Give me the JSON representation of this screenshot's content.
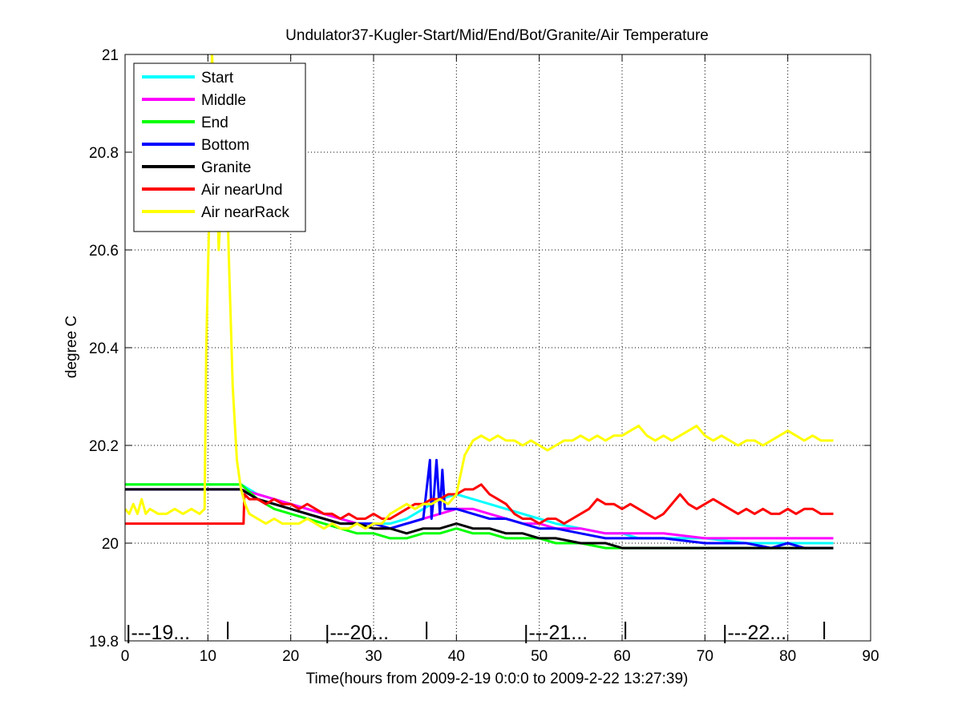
{
  "chart_data": {
    "type": "line",
    "title": "Undulator37-Kugler-Start/Mid/End/Bot/Granite/Air Temperature",
    "xlabel": "Time(hours from 2009-2-19 0:0:0 to 2009-2-22 13:27:39)",
    "ylabel": "degree C",
    "xlim": [
      0,
      90
    ],
    "ylim": [
      19.8,
      21
    ],
    "xticks": [
      0,
      10,
      20,
      30,
      40,
      50,
      60,
      70,
      80,
      90
    ],
    "yticks": [
      19.8,
      20,
      20.2,
      20.4,
      20.6,
      20.8,
      21
    ],
    "xtick_labels": [
      "0",
      "10",
      "20",
      "30",
      "40",
      "50",
      "60",
      "70",
      "80",
      "90"
    ],
    "ytick_labels": [
      "19.8",
      "20",
      "20.2",
      "20.4",
      "20.6",
      "20.8",
      "21"
    ],
    "grid": true,
    "legend_position": "top-left",
    "day_markers": [
      {
        "label": "|---19...",
        "x": 0
      },
      {
        "label": "|---20...",
        "x": 24
      },
      {
        "label": "|---21...",
        "x": 48
      },
      {
        "label": "|---22...",
        "x": 72
      }
    ],
    "day_end_ticks": [
      12.4,
      36.4,
      60.4,
      84.4
    ],
    "series": [
      {
        "name": "Start",
        "color": "#00ffff",
        "x": [
          0,
          14,
          15,
          16,
          18,
          20,
          22,
          24,
          26,
          28,
          30,
          32,
          34,
          36,
          38,
          40,
          42,
          44,
          46,
          48,
          50,
          52,
          55,
          58,
          60,
          62,
          65,
          70,
          75,
          80,
          85.5
        ],
        "y": [
          20.12,
          20.12,
          20.11,
          20.1,
          20.09,
          20.08,
          20.07,
          20.06,
          20.05,
          20.04,
          20.04,
          20.04,
          20.05,
          20.07,
          20.09,
          20.1,
          20.09,
          20.08,
          20.07,
          20.06,
          20.05,
          20.04,
          20.03,
          20.02,
          20.02,
          20.01,
          20.01,
          20.01,
          20.0,
          20.0,
          20.0
        ]
      },
      {
        "name": "Middle",
        "color": "#ff00ff",
        "x": [
          0,
          14,
          16,
          18,
          20,
          22,
          24,
          26,
          28,
          30,
          32,
          34,
          36,
          38,
          40,
          42,
          44,
          46,
          48,
          50,
          52,
          55,
          58,
          60,
          65,
          70,
          75,
          80,
          85.5
        ],
        "y": [
          20.11,
          20.11,
          20.1,
          20.09,
          20.08,
          20.07,
          20.06,
          20.05,
          20.04,
          20.03,
          20.03,
          20.04,
          20.05,
          20.06,
          20.07,
          20.07,
          20.06,
          20.05,
          20.04,
          20.04,
          20.03,
          20.03,
          20.02,
          20.02,
          20.02,
          20.01,
          20.01,
          20.01,
          20.01
        ]
      },
      {
        "name": "End",
        "color": "#00ff00",
        "x": [
          0,
          14,
          16,
          18,
          20,
          22,
          24,
          26,
          28,
          30,
          32,
          34,
          36,
          38,
          40,
          42,
          44,
          46,
          48,
          50,
          52,
          55,
          58,
          60,
          65,
          70,
          75,
          80,
          85.5
        ],
        "y": [
          20.12,
          20.12,
          20.09,
          20.07,
          20.06,
          20.05,
          20.04,
          20.03,
          20.02,
          20.02,
          20.01,
          20.01,
          20.02,
          20.02,
          20.03,
          20.02,
          20.02,
          20.01,
          20.01,
          20.01,
          20.0,
          20.0,
          19.99,
          19.99,
          19.99,
          19.99,
          19.99,
          19.99,
          19.99
        ]
      },
      {
        "name": "Bottom",
        "color": "#0000ff",
        "x": [
          0,
          14,
          16,
          18,
          20,
          22,
          24,
          26,
          28,
          30,
          32,
          34,
          36,
          36.8,
          37.0,
          37.3,
          37.6,
          38.0,
          38.3,
          38.6,
          39,
          40,
          42,
          44,
          46,
          48,
          50,
          52,
          55,
          58,
          60,
          65,
          70,
          75,
          78,
          80,
          82,
          85.5
        ],
        "y": [
          20.11,
          20.11,
          20.09,
          20.08,
          20.07,
          20.06,
          20.05,
          20.04,
          20.04,
          20.04,
          20.03,
          20.04,
          20.05,
          20.17,
          20.05,
          20.1,
          20.17,
          20.06,
          20.15,
          20.07,
          20.07,
          20.07,
          20.06,
          20.05,
          20.05,
          20.04,
          20.03,
          20.03,
          20.02,
          20.01,
          20.01,
          20.01,
          20.0,
          20.0,
          19.99,
          20.0,
          19.99,
          19.99
        ]
      },
      {
        "name": "Granite",
        "color": "#000000",
        "x": [
          0,
          14,
          16,
          18,
          20,
          22,
          24,
          26,
          28,
          30,
          32,
          34,
          36,
          38,
          40,
          42,
          44,
          46,
          48,
          50,
          52,
          55,
          58,
          60,
          65,
          70,
          75,
          80,
          85.5
        ],
        "y": [
          20.11,
          20.11,
          20.09,
          20.08,
          20.07,
          20.06,
          20.05,
          20.04,
          20.04,
          20.03,
          20.03,
          20.02,
          20.03,
          20.03,
          20.04,
          20.03,
          20.03,
          20.02,
          20.02,
          20.01,
          20.01,
          20.0,
          20.0,
          19.99,
          19.99,
          19.99,
          19.99,
          19.99,
          19.99
        ]
      },
      {
        "name": "Air nearUnd",
        "color": "#ff0000",
        "x": [
          0,
          14.3,
          14.4,
          15,
          16,
          17,
          18,
          19,
          20,
          21,
          22,
          23,
          24,
          25,
          26,
          27,
          28,
          29,
          30,
          31,
          32,
          33,
          34,
          35,
          36,
          37,
          38,
          39,
          40,
          41,
          42,
          43,
          44,
          45,
          46,
          47,
          48,
          49,
          50,
          51,
          52,
          53,
          54,
          55,
          56,
          57,
          58,
          59,
          60,
          61,
          62,
          63,
          64,
          65,
          66,
          67,
          68,
          69,
          70,
          71,
          72,
          73,
          74,
          75,
          76,
          77,
          78,
          79,
          80,
          81,
          82,
          83,
          84,
          85.5
        ],
        "y": [
          20.04,
          20.04,
          20.1,
          20.09,
          20.09,
          20.08,
          20.09,
          20.08,
          20.08,
          20.07,
          20.08,
          20.07,
          20.06,
          20.06,
          20.05,
          20.06,
          20.05,
          20.05,
          20.06,
          20.05,
          20.05,
          20.06,
          20.07,
          20.08,
          20.08,
          20.09,
          20.09,
          20.1,
          20.1,
          20.11,
          20.11,
          20.12,
          20.1,
          20.09,
          20.08,
          20.06,
          20.05,
          20.05,
          20.04,
          20.05,
          20.05,
          20.04,
          20.05,
          20.06,
          20.07,
          20.09,
          20.08,
          20.08,
          20.07,
          20.08,
          20.07,
          20.06,
          20.05,
          20.06,
          20.08,
          20.1,
          20.08,
          20.07,
          20.08,
          20.09,
          20.08,
          20.07,
          20.06,
          20.07,
          20.06,
          20.07,
          20.06,
          20.06,
          20.07,
          20.06,
          20.07,
          20.07,
          20.06,
          20.06
        ]
      },
      {
        "name": "Air nearRack",
        "color": "#ffff00",
        "x": [
          0,
          0.5,
          1,
          1.5,
          2,
          2.5,
          3,
          4,
          5,
          6,
          7,
          8,
          9,
          9.6,
          9.8,
          10.2,
          10.5,
          11,
          11.3,
          11.6,
          12,
          12.5,
          13,
          13.5,
          14,
          14.5,
          15,
          16,
          17,
          18,
          19,
          20,
          21,
          22,
          23,
          24,
          25,
          26,
          27,
          28,
          29,
          30,
          31,
          32,
          33,
          34,
          35,
          36,
          37,
          38,
          39,
          40,
          40.5,
          41,
          42,
          43,
          44,
          45,
          46,
          47,
          48,
          49,
          50,
          51,
          52,
          53,
          54,
          55,
          56,
          57,
          58,
          59,
          60,
          61,
          62,
          63,
          64,
          65,
          66,
          67,
          68,
          69,
          70,
          71,
          72,
          73,
          74,
          75,
          76,
          77,
          78,
          79,
          80,
          81,
          82,
          83,
          84,
          85.5
        ],
        "y": [
          20.07,
          20.06,
          20.08,
          20.06,
          20.09,
          20.06,
          20.07,
          20.06,
          20.06,
          20.07,
          20.06,
          20.07,
          20.06,
          20.07,
          20.4,
          20.7,
          21.0,
          20.82,
          20.6,
          20.7,
          20.98,
          20.6,
          20.32,
          20.17,
          20.11,
          20.08,
          20.06,
          20.05,
          20.04,
          20.05,
          20.04,
          20.04,
          20.04,
          20.05,
          20.04,
          20.03,
          20.04,
          20.03,
          20.03,
          20.04,
          20.03,
          20.04,
          20.04,
          20.06,
          20.07,
          20.08,
          20.07,
          20.08,
          20.08,
          20.09,
          20.08,
          20.1,
          20.14,
          20.18,
          20.21,
          20.22,
          20.21,
          20.22,
          20.21,
          20.21,
          20.2,
          20.21,
          20.2,
          20.19,
          20.2,
          20.21,
          20.21,
          20.22,
          20.21,
          20.22,
          20.21,
          20.22,
          20.22,
          20.23,
          20.24,
          20.22,
          20.21,
          20.22,
          20.21,
          20.22,
          20.23,
          20.24,
          20.22,
          20.21,
          20.22,
          20.21,
          20.2,
          20.21,
          20.21,
          20.2,
          20.21,
          20.22,
          20.23,
          20.22,
          20.21,
          20.22,
          20.21,
          20.21
        ]
      }
    ]
  }
}
